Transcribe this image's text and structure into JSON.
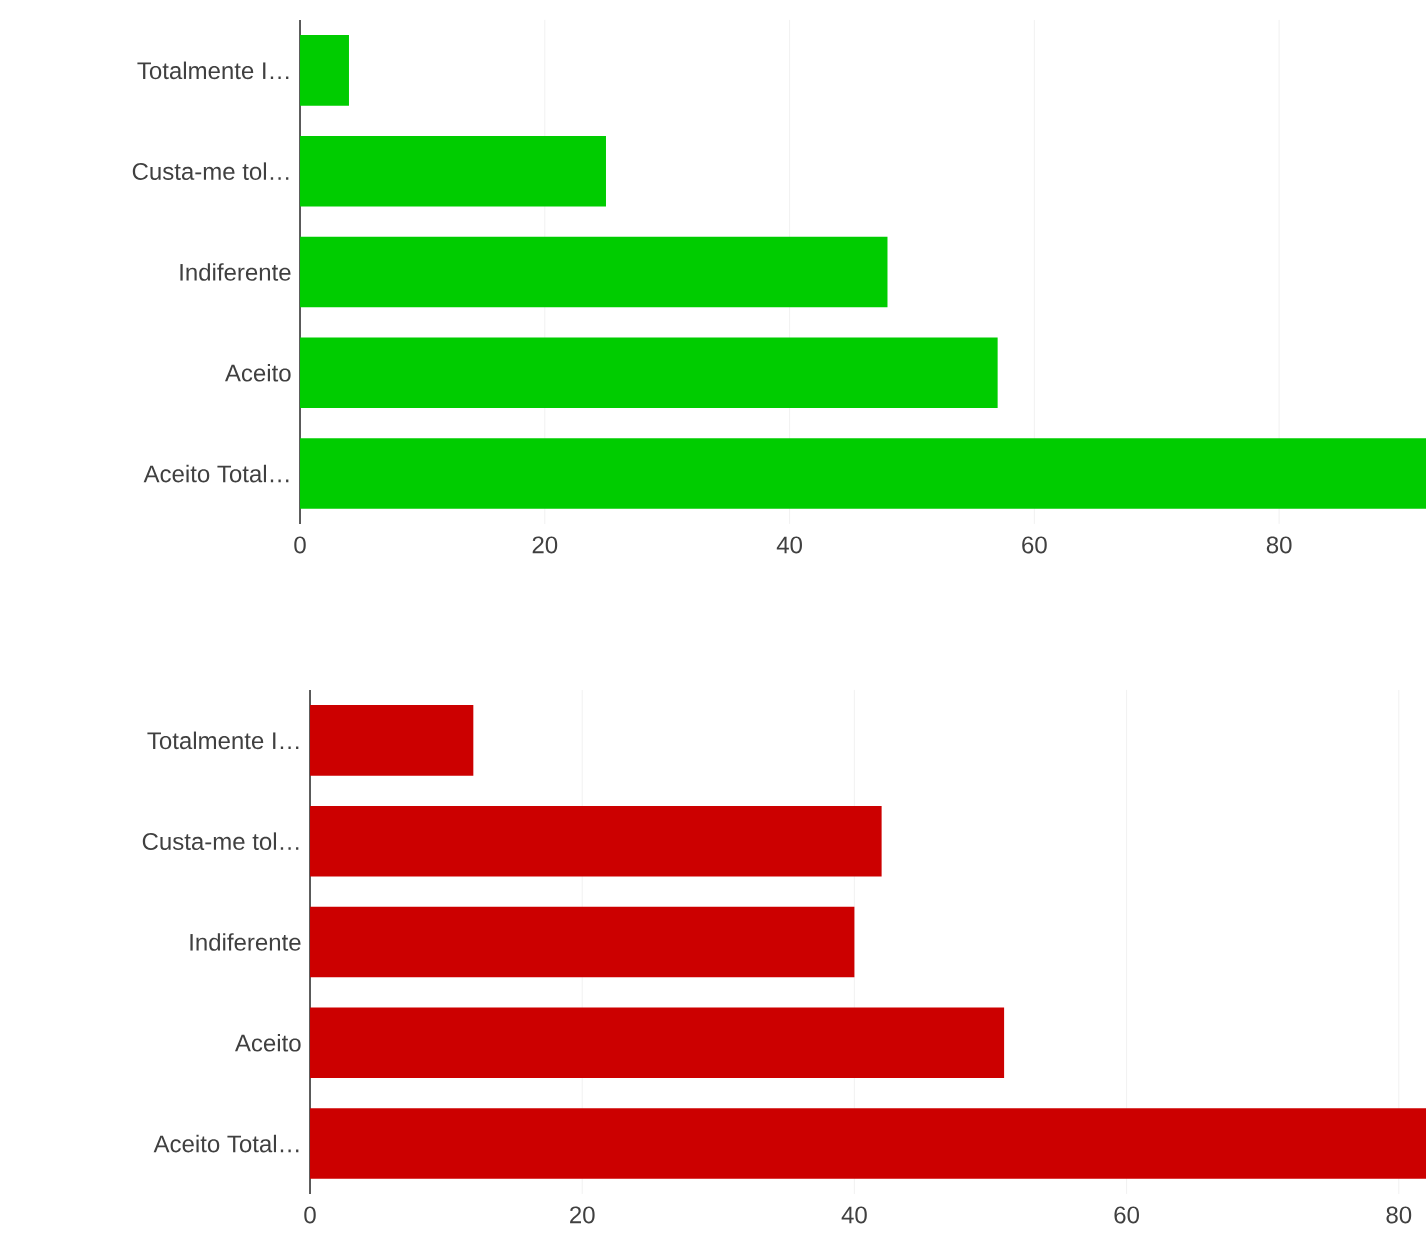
{
  "chart_data": [
    {
      "type": "bar",
      "orientation": "horizontal",
      "categories": [
        "Totalmente I…",
        "Custa-me tol…",
        "Indiferente",
        "Aceito",
        "Aceito Total…"
      ],
      "values": [
        4,
        25,
        48,
        57,
        92
      ],
      "color": "#00cc00",
      "xlim": [
        0,
        92
      ],
      "xticks": [
        0,
        20,
        40,
        60,
        80
      ],
      "grid": "x"
    },
    {
      "type": "bar",
      "orientation": "horizontal",
      "categories": [
        "Totalmente I…",
        "Custa-me tol…",
        "Indiferente",
        "Aceito",
        "Aceito Total…"
      ],
      "values": [
        12,
        42,
        40,
        51,
        82
      ],
      "color": "#cc0000",
      "xlim": [
        0,
        82
      ],
      "xticks": [
        0,
        20,
        40,
        60,
        80
      ],
      "grid": "x"
    }
  ]
}
